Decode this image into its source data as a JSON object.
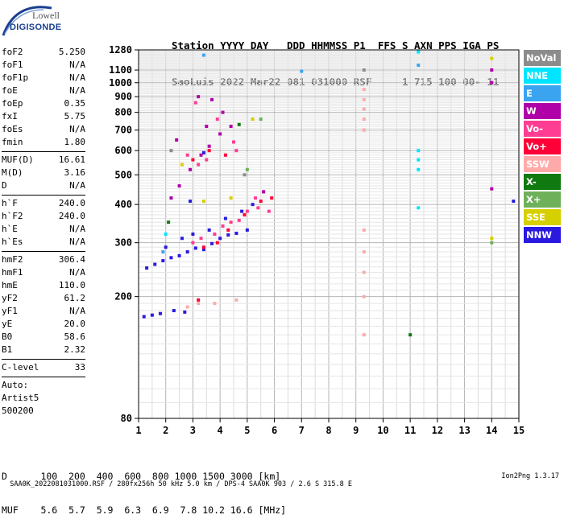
{
  "logo": {
    "line1": "Lowell",
    "line2": "DIGISONDE"
  },
  "header": {
    "line1": "Station YYYY DAY   DDD HHMMSS P1  FFS S AXN PPS IGA PS",
    "line2": "SaoLuis 2022 Mar22 081 031000 RSF     1 715 100 00- 11"
  },
  "params": {
    "group1": [
      [
        "foF2",
        "5.250"
      ],
      [
        "foF1",
        "N/A"
      ],
      [
        "foF1p",
        "N/A"
      ],
      [
        "foE",
        "N/A"
      ],
      [
        "foEp",
        "0.35"
      ],
      [
        "fxI",
        "5.75"
      ],
      [
        "foEs",
        "N/A"
      ],
      [
        "fmin",
        "1.80"
      ]
    ],
    "group2": [
      [
        "MUF(D)",
        "16.61"
      ],
      [
        "M(D)",
        "3.16"
      ],
      [
        "D",
        "N/A"
      ]
    ],
    "group3": [
      [
        "h`F",
        "240.0"
      ],
      [
        "h`F2",
        "240.0"
      ],
      [
        "h`E",
        "N/A"
      ],
      [
        "h`Es",
        "N/A"
      ]
    ],
    "group4": [
      [
        "hmF2",
        "306.4"
      ],
      [
        "hmF1",
        "N/A"
      ],
      [
        "hmE",
        "110.0"
      ],
      [
        "yF2",
        "61.2"
      ],
      [
        "yF1",
        "N/A"
      ],
      [
        "yE",
        "20.0"
      ],
      [
        "B0",
        "58.6"
      ],
      [
        "B1",
        "2.32"
      ]
    ],
    "group5": [
      [
        "C-level",
        "33"
      ]
    ],
    "notes": [
      "Auto:",
      "Artist5",
      "500200"
    ]
  },
  "legend": [
    {
      "label": "NoVal",
      "bg": "#8c8c8c",
      "fg": "#ffffff"
    },
    {
      "label": "NNE",
      "bg": "#00e5ff",
      "fg": "#ffffff"
    },
    {
      "label": "E",
      "bg": "#3aa4f0",
      "fg": "#ffffff"
    },
    {
      "label": "W",
      "bg": "#b000a8",
      "fg": "#ffffff"
    },
    {
      "label": "Vo-",
      "bg": "#ff3d92",
      "fg": "#ffffff"
    },
    {
      "label": "Vo+",
      "bg": "#ff0038",
      "fg": "#ffffff"
    },
    {
      "label": "SSW",
      "bg": "#ffaaaa",
      "fg": "#ffffff"
    },
    {
      "label": "X-",
      "bg": "#107a10",
      "fg": "#ffffff"
    },
    {
      "label": "X+",
      "bg": "#6fb15a",
      "fg": "#ffffff"
    },
    {
      "label": "SSE",
      "bg": "#d6d000",
      "fg": "#ffffff"
    },
    {
      "label": "NNW",
      "bg": "#2a1ae0",
      "fg": "#ffffff"
    }
  ],
  "muf_table": {
    "line1": "D      100  200  400  600  800 1000 1500 3000 [km]",
    "line2": "MUF    5.6  5.7  5.9  6.3  6.9  7.8 10.2 16.6 [MHz]"
  },
  "footer": {
    "left": "SAA0K_2022081031000.RSF / 280fx256h 50 kHz 5.0 km / DPS-4 SAA0K 903 / 2.6 S 315.8 E",
    "right": "Ion2Png 1.3.17"
  },
  "chart_data": {
    "type": "scatter",
    "title": "",
    "xlabel": "",
    "ylabel": "",
    "xlim": [
      1,
      15
    ],
    "ylim": [
      80,
      1280
    ],
    "y_scale": "log",
    "x_ticks": [
      1,
      2,
      3,
      4,
      5,
      6,
      7,
      8,
      9,
      10,
      11,
      12,
      13,
      14,
      15
    ],
    "y_ticks": [
      80,
      200,
      300,
      400,
      500,
      600,
      700,
      800,
      900,
      1000,
      1100,
      1280
    ],
    "grid": true,
    "legend_position": "right",
    "series": [
      {
        "name": "NNW",
        "color": "#2a1ae0",
        "points": [
          [
            1.3,
            248
          ],
          [
            1.6,
            255
          ],
          [
            1.9,
            262
          ],
          [
            2.2,
            268
          ],
          [
            2.5,
            272
          ],
          [
            2.8,
            280
          ],
          [
            3.1,
            288
          ],
          [
            3.4,
            285
          ],
          [
            3.7,
            298
          ],
          [
            4.0,
            310
          ],
          [
            4.3,
            318
          ],
          [
            4.6,
            322
          ],
          [
            5.0,
            330
          ],
          [
            2.0,
            290
          ],
          [
            2.6,
            310
          ],
          [
            3.0,
            320
          ],
          [
            3.6,
            330
          ],
          [
            4.2,
            360
          ],
          [
            4.8,
            380
          ],
          [
            5.2,
            400
          ],
          [
            1.2,
            172
          ],
          [
            1.5,
            174
          ],
          [
            1.8,
            176
          ],
          [
            2.3,
            180
          ],
          [
            2.7,
            178
          ],
          [
            3.4,
            590
          ],
          [
            2.9,
            410
          ],
          [
            14.8,
            410
          ]
        ]
      },
      {
        "name": "Vo-",
        "color": "#ff3d92",
        "points": [
          [
            3.0,
            300
          ],
          [
            3.3,
            310
          ],
          [
            3.8,
            320
          ],
          [
            4.1,
            340
          ],
          [
            4.4,
            350
          ],
          [
            4.7,
            355
          ],
          [
            5.0,
            380
          ],
          [
            5.3,
            420
          ],
          [
            5.6,
            440
          ],
          [
            3.2,
            540
          ],
          [
            3.5,
            560
          ],
          [
            2.8,
            580
          ],
          [
            4.6,
            600
          ],
          [
            5.4,
            390
          ],
          [
            5.8,
            380
          ],
          [
            3.1,
            860
          ],
          [
            3.9,
            760
          ],
          [
            4.5,
            640
          ]
        ]
      },
      {
        "name": "Vo+",
        "color": "#ff0038",
        "points": [
          [
            3.4,
            290
          ],
          [
            3.9,
            300
          ],
          [
            4.3,
            330
          ],
          [
            4.9,
            370
          ],
          [
            5.5,
            410
          ],
          [
            5.9,
            420
          ],
          [
            3.0,
            560
          ],
          [
            3.6,
            600
          ],
          [
            4.2,
            580
          ],
          [
            3.2,
            195
          ]
        ]
      },
      {
        "name": "W",
        "color": "#b000a8",
        "points": [
          [
            2.2,
            420
          ],
          [
            2.5,
            460
          ],
          [
            2.9,
            520
          ],
          [
            3.3,
            580
          ],
          [
            3.6,
            620
          ],
          [
            4.0,
            680
          ],
          [
            4.4,
            720
          ],
          [
            3.2,
            900
          ],
          [
            3.7,
            880
          ],
          [
            4.1,
            800
          ],
          [
            3.5,
            720
          ],
          [
            2.4,
            650
          ],
          [
            5.6,
            440
          ],
          [
            14.0,
            1100
          ],
          [
            14.0,
            1000
          ],
          [
            14.0,
            450
          ]
        ]
      },
      {
        "name": "SSW",
        "color": "#ffaaaa",
        "points": [
          [
            9.3,
            950
          ],
          [
            9.3,
            880
          ],
          [
            9.3,
            820
          ],
          [
            9.3,
            760
          ],
          [
            9.3,
            700
          ],
          [
            9.3,
            330
          ],
          [
            9.3,
            280
          ],
          [
            9.3,
            240
          ],
          [
            9.3,
            200
          ],
          [
            9.3,
            150
          ],
          [
            2.8,
            185
          ],
          [
            3.2,
            190
          ],
          [
            3.8,
            190
          ],
          [
            4.6,
            195
          ]
        ]
      },
      {
        "name": "NNE",
        "color": "#00e5ff",
        "points": [
          [
            11.3,
            600
          ],
          [
            11.3,
            560
          ],
          [
            11.3,
            520
          ],
          [
            11.3,
            390
          ],
          [
            11.3,
            1260
          ],
          [
            2.0,
            320
          ]
        ]
      },
      {
        "name": "E",
        "color": "#3aa4f0",
        "points": [
          [
            11.3,
            1140
          ],
          [
            7.0,
            1090
          ],
          [
            3.4,
            1230
          ],
          [
            1.9,
            280
          ]
        ]
      },
      {
        "name": "SSE",
        "color": "#d6d000",
        "points": [
          [
            2.6,
            540
          ],
          [
            3.4,
            410
          ],
          [
            4.4,
            420
          ],
          [
            5.2,
            760
          ],
          [
            14.0,
            1200
          ],
          [
            14.0,
            310
          ]
        ]
      },
      {
        "name": "X-",
        "color": "#107a10",
        "points": [
          [
            4.7,
            730
          ],
          [
            11.0,
            150
          ],
          [
            2.1,
            350
          ]
        ]
      },
      {
        "name": "X+",
        "color": "#6fb15a",
        "points": [
          [
            5.5,
            760
          ],
          [
            5.0,
            520
          ],
          [
            14.0,
            300
          ]
        ]
      },
      {
        "name": "NoVal",
        "color": "#8c8c8c",
        "points": [
          [
            2.2,
            600
          ],
          [
            4.9,
            500
          ],
          [
            9.3,
            1100
          ]
        ]
      }
    ]
  }
}
